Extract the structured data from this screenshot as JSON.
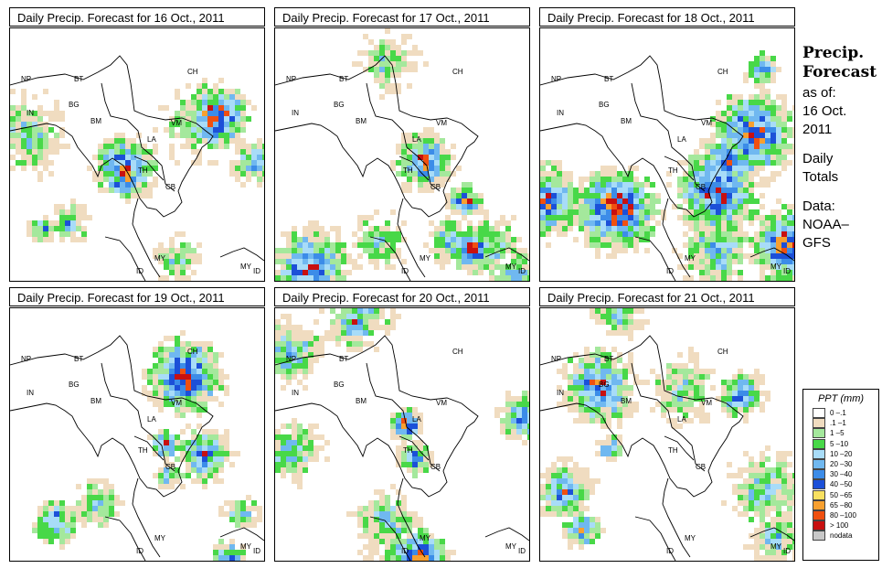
{
  "panels": [
    {
      "title": "Daily Precip. Forecast for  16 Oct., 2011",
      "seed": 11
    },
    {
      "title": "Daily Precip. Forecast for  17 Oct., 2011",
      "seed": 23
    },
    {
      "title": "Daily Precip. Forecast for  18 Oct., 2011",
      "seed": 37
    },
    {
      "title": "Daily Precip. Forecast for  19 Oct., 2011",
      "seed": 41
    },
    {
      "title": "Daily Precip. Forecast for  20 Oct., 2011",
      "seed": 53
    },
    {
      "title": "Daily Precip. Forecast for  21 Oct., 2011",
      "seed": 67
    }
  ],
  "country_labels": [
    "NP",
    "BT",
    "IN",
    "BG",
    "BM",
    "CH",
    "VM",
    "LA",
    "TH",
    "CB",
    "MY",
    "ID",
    "MY",
    "ID"
  ],
  "side": {
    "heading_1": "Precip.",
    "heading_2": "Forecast",
    "line_1": "as of:",
    "line_2": "16 Oct.",
    "line_3": "2011",
    "line_4": "Daily",
    "line_5": "Totals",
    "line_6": "Data:",
    "line_7": "NOAA–",
    "line_8": "GFS"
  },
  "legend": {
    "title": "PPT (mm)",
    "items": [
      {
        "label": "0 –.1",
        "color": "#ffffff"
      },
      {
        "label": ".1 –1",
        "color": "#f0dcc0"
      },
      {
        "label": "1 –5",
        "color": "#a4e89c"
      },
      {
        "label": "5 –10",
        "color": "#48d848"
      },
      {
        "label": "10 –20",
        "color": "#a8dcf8"
      },
      {
        "label": "20 –30",
        "color": "#70b8f0"
      },
      {
        "label": "30 –40",
        "color": "#3c8ce8"
      },
      {
        "label": "40 –50",
        "color": "#1c50d8"
      },
      {
        "label": "50 –65",
        "color": "#f8e060"
      },
      {
        "label": "65 –80",
        "color": "#f8a030"
      },
      {
        "label": "80 –100",
        "color": "#f05010"
      },
      {
        "label": "> 100",
        "color": "#c81010"
      },
      {
        "label": "nodata",
        "color": "#c8c8c8"
      }
    ]
  }
}
